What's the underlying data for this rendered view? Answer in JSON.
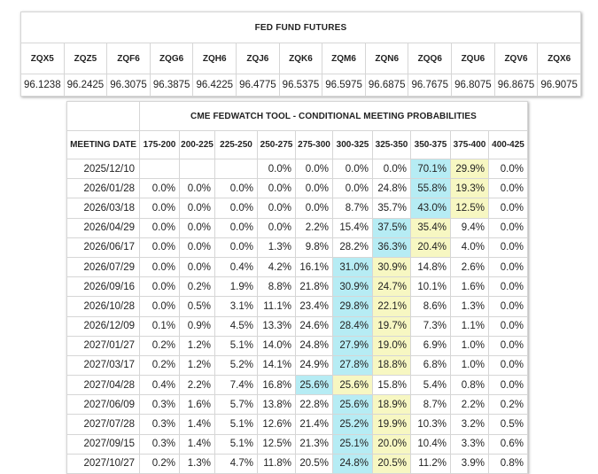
{
  "futures": {
    "title": "FED FUND FUTURES",
    "contracts": [
      {
        "code": "ZQX5",
        "price": "96.1238"
      },
      {
        "code": "ZQZ5",
        "price": "96.2425"
      },
      {
        "code": "ZQF6",
        "price": "96.3075"
      },
      {
        "code": "ZQG6",
        "price": "96.3875"
      },
      {
        "code": "ZQH6",
        "price": "96.4225"
      },
      {
        "code": "ZQJ6",
        "price": "96.4775"
      },
      {
        "code": "ZQK6",
        "price": "96.5375"
      },
      {
        "code": "ZQM6",
        "price": "96.5975"
      },
      {
        "code": "ZQN6",
        "price": "96.6875"
      },
      {
        "code": "ZQQ6",
        "price": "96.7675"
      },
      {
        "code": "ZQU6",
        "price": "96.8075"
      },
      {
        "code": "ZQV6",
        "price": "96.8675"
      },
      {
        "code": "ZQX6",
        "price": "96.9075"
      }
    ]
  },
  "fedwatch": {
    "title": "CME FEDWATCH TOOL - CONDITIONAL MEETING PROBABILITIES",
    "meeting_date_label": "MEETING DATE",
    "ranges": [
      "175-200",
      "200-225",
      "225-250",
      "250-275",
      "275-300",
      "300-325",
      "325-350",
      "350-375",
      "375-400",
      "400-425"
    ],
    "highlight_colors": {
      "blue": "#b6ecf4",
      "yellow": "#f7f7c2"
    },
    "rows": [
      {
        "date": "2025/12/10",
        "values": [
          "",
          "",
          "",
          "0.0%",
          "0.0%",
          "0.0%",
          "0.0%",
          "70.1%",
          "29.9%",
          "0.0%"
        ],
        "blue": 7,
        "yellow": 8
      },
      {
        "date": "2026/01/28",
        "values": [
          "0.0%",
          "0.0%",
          "0.0%",
          "0.0%",
          "0.0%",
          "0.0%",
          "24.8%",
          "55.8%",
          "19.3%",
          "0.0%"
        ],
        "blue": 7,
        "yellow": 8
      },
      {
        "date": "2026/03/18",
        "values": [
          "0.0%",
          "0.0%",
          "0.0%",
          "0.0%",
          "0.0%",
          "8.7%",
          "35.7%",
          "43.0%",
          "12.5%",
          "0.0%"
        ],
        "blue": 7,
        "yellow": 8
      },
      {
        "date": "2026/04/29",
        "values": [
          "0.0%",
          "0.0%",
          "0.0%",
          "0.0%",
          "2.2%",
          "15.4%",
          "37.5%",
          "35.4%",
          "9.4%",
          "0.0%"
        ],
        "blue": 6,
        "yellow": 7
      },
      {
        "date": "2026/06/17",
        "values": [
          "0.0%",
          "0.0%",
          "0.0%",
          "1.3%",
          "9.8%",
          "28.2%",
          "36.3%",
          "20.4%",
          "4.0%",
          "0.0%"
        ],
        "blue": 6,
        "yellow": 7
      },
      {
        "date": "2026/07/29",
        "values": [
          "0.0%",
          "0.0%",
          "0.4%",
          "4.2%",
          "16.1%",
          "31.0%",
          "30.9%",
          "14.8%",
          "2.6%",
          "0.0%"
        ],
        "blue": 5,
        "yellow": 6
      },
      {
        "date": "2026/09/16",
        "values": [
          "0.0%",
          "0.2%",
          "1.9%",
          "8.8%",
          "21.8%",
          "30.9%",
          "24.7%",
          "10.1%",
          "1.6%",
          "0.0%"
        ],
        "blue": 5,
        "yellow": 6
      },
      {
        "date": "2026/10/28",
        "values": [
          "0.0%",
          "0.5%",
          "3.1%",
          "11.1%",
          "23.4%",
          "29.8%",
          "22.1%",
          "8.6%",
          "1.3%",
          "0.0%"
        ],
        "blue": 5,
        "yellow": 6
      },
      {
        "date": "2026/12/09",
        "values": [
          "0.1%",
          "0.9%",
          "4.5%",
          "13.3%",
          "24.6%",
          "28.4%",
          "19.7%",
          "7.3%",
          "1.1%",
          "0.0%"
        ],
        "blue": 5,
        "yellow": 6
      },
      {
        "date": "2027/01/27",
        "values": [
          "0.2%",
          "1.2%",
          "5.1%",
          "14.0%",
          "24.8%",
          "27.9%",
          "19.0%",
          "6.9%",
          "1.0%",
          "0.0%"
        ],
        "blue": 5,
        "yellow": 6
      },
      {
        "date": "2027/03/17",
        "values": [
          "0.2%",
          "1.2%",
          "5.2%",
          "14.1%",
          "24.9%",
          "27.8%",
          "18.8%",
          "6.8%",
          "1.0%",
          "0.0%"
        ],
        "blue": 5,
        "yellow": 6
      },
      {
        "date": "2027/04/28",
        "values": [
          "0.4%",
          "2.2%",
          "7.4%",
          "16.8%",
          "25.6%",
          "25.6%",
          "15.8%",
          "5.4%",
          "0.8%",
          "0.0%"
        ],
        "blue": 4,
        "yellow": 5
      },
      {
        "date": "2027/06/09",
        "values": [
          "0.3%",
          "1.6%",
          "5.7%",
          "13.8%",
          "22.8%",
          "25.6%",
          "18.9%",
          "8.7%",
          "2.2%",
          "0.2%"
        ],
        "blue": 5,
        "yellow": 6
      },
      {
        "date": "2027/07/28",
        "values": [
          "0.3%",
          "1.4%",
          "5.1%",
          "12.6%",
          "21.4%",
          "25.2%",
          "19.9%",
          "10.3%",
          "3.2%",
          "0.5%"
        ],
        "blue": 5,
        "yellow": 6
      },
      {
        "date": "2027/09/15",
        "values": [
          "0.3%",
          "1.4%",
          "5.1%",
          "12.5%",
          "21.3%",
          "25.1%",
          "20.0%",
          "10.4%",
          "3.3%",
          "0.6%"
        ],
        "blue": 5,
        "yellow": 6
      },
      {
        "date": "2027/10/27",
        "values": [
          "0.2%",
          "1.3%",
          "4.7%",
          "11.8%",
          "20.5%",
          "24.8%",
          "20.5%",
          "11.2%",
          "3.9%",
          "0.8%"
        ],
        "blue": 5,
        "yellow": 6
      }
    ]
  }
}
